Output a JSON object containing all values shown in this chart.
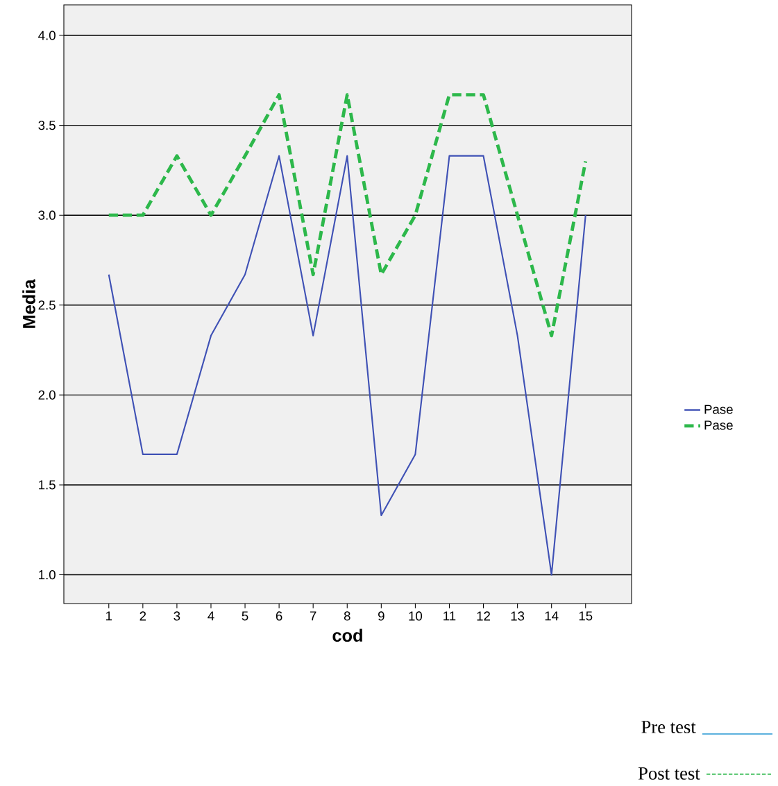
{
  "chart_data": {
    "type": "line",
    "xlabel": "cod",
    "ylabel": "Media",
    "categories": [
      "1",
      "2",
      "3",
      "4",
      "5",
      "6",
      "7",
      "8",
      "9",
      "10",
      "11",
      "12",
      "13",
      "14",
      "15"
    ],
    "series": [
      {
        "name": "Pase",
        "color": "#3f51b5",
        "line_style": "solid",
        "values": [
          2.67,
          1.67,
          1.67,
          2.33,
          2.67,
          3.33,
          2.33,
          3.33,
          1.33,
          1.67,
          3.33,
          3.33,
          2.33,
          1.0,
          3.0
        ]
      },
      {
        "name": "Pase",
        "color": "#2db84b",
        "line_style": "dashed",
        "values": [
          3.0,
          3.0,
          3.33,
          3.0,
          3.33,
          3.67,
          2.67,
          3.67,
          2.67,
          3.0,
          3.67,
          3.67,
          3.0,
          2.33,
          3.3
        ]
      }
    ],
    "ylim": [
      0.84,
      4.17
    ],
    "yticks": [
      {
        "value": 1,
        "label": "1.0"
      },
      {
        "value": 1.5,
        "label": "1.5"
      },
      {
        "value": 2,
        "label": "2.0"
      },
      {
        "value": 2.5,
        "label": "2.5"
      },
      {
        "value": 3,
        "label": "3.0"
      },
      {
        "value": 3.5,
        "label": "3.5"
      },
      {
        "value": 4,
        "label": "4.0"
      }
    ],
    "grid": "y",
    "legend": "right",
    "marker": "none",
    "annotations": [
      "Pre test",
      "Post test"
    ]
  }
}
